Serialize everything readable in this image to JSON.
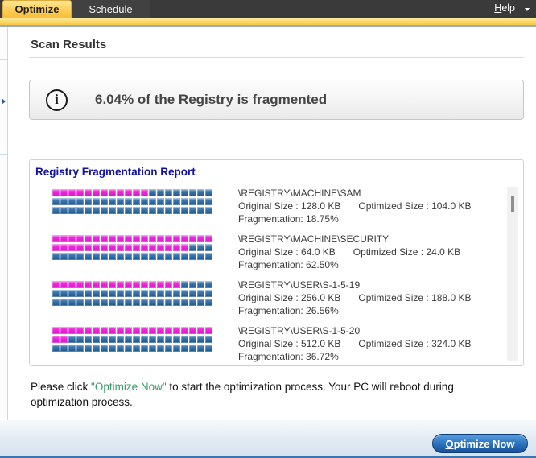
{
  "tabs": {
    "optimize": "Optimize",
    "schedule": "Schedule",
    "help_initial": "H",
    "help_rest": "elp"
  },
  "page": {
    "title": "Scan Results"
  },
  "summary": {
    "message": "6.04% of the Registry is fragmented",
    "icon": "info-circle-icon"
  },
  "report": {
    "title": "Registry Fragmentation Report",
    "grid": {
      "rows": 3,
      "columns": 20,
      "fragmented_color": "#db12cb",
      "normal_color": "#1c568f"
    },
    "entries": [
      {
        "hive": "\\REGISTRY\\MACHINE\\SAM",
        "original_label": "Original Size : 128.0 KB",
        "optimized_label": "Optimized Size : 104.0 KB",
        "fragmentation_label": "Fragmentation: 18.75%",
        "fragmented_blocks": 12
      },
      {
        "hive": "\\REGISTRY\\MACHINE\\SECURITY",
        "original_label": "Original Size : 64.0 KB",
        "optimized_label": "Optimized Size : 24.0 KB",
        "fragmentation_label": "Fragmentation: 62.50%",
        "fragmented_blocks": 37
      },
      {
        "hive": "\\REGISTRY\\USER\\S-1-5-19",
        "original_label": "Original Size : 256.0 KB",
        "optimized_label": "Optimized Size : 188.0 KB",
        "fragmentation_label": "Fragmentation: 26.56%",
        "fragmented_blocks": 16
      },
      {
        "hive": "\\REGISTRY\\USER\\S-1-5-20",
        "original_label": "Original Size : 512.0 KB",
        "optimized_label": "Optimized Size : 324.0 KB",
        "fragmentation_label": "Fragmentation: 36.72%",
        "fragmented_blocks": 22
      }
    ],
    "layout": {
      "entry_pitch": 57
    }
  },
  "footer": {
    "instruction_prefix": "Please click ",
    "instruction_highlight": "\"Optimize Now\"",
    "instruction_suffix": " to start the optimization process. Your PC will reboot during optimization process.",
    "button_initial": "O",
    "button_rest": "ptimize Now"
  },
  "colors": {
    "active_tab_gold": "#f9bd38",
    "topbar_dark": "#3a3a3a",
    "panel_title_navy": "#1213a5",
    "highlight_green": "#339966",
    "button_blue": "#2f77c2",
    "bottom_edge_blue": "#3a76ad"
  }
}
